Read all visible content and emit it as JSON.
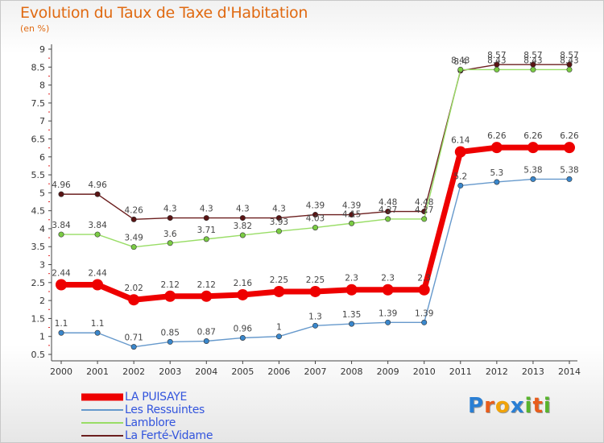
{
  "chart_data": {
    "type": "line",
    "title": "Evolution du Taux de Taxe d'Habitation",
    "subtitle": "(en %)",
    "xlabel": "",
    "ylabel": "",
    "x": [
      "2000",
      "2001",
      "2002",
      "2003",
      "2004",
      "2005",
      "2006",
      "2007",
      "2008",
      "2009",
      "2010",
      "2011",
      "2012",
      "2013",
      "2014"
    ],
    "ylim": [
      0.5,
      9
    ],
    "yticks": [
      "0.5",
      "1",
      "1.5",
      "2",
      "2.5",
      "3",
      "3.5",
      "4",
      "4.5",
      "5",
      "5.5",
      "6",
      "6.5",
      "7",
      "7.5",
      "8",
      "8.5",
      "9"
    ],
    "grid": false,
    "legend_position": "bottom-left",
    "series": [
      {
        "name": "La Ferté-Vidame",
        "color": "#6b1e1e",
        "point_color": "#5a1414",
        "values": [
          4.96,
          4.96,
          4.26,
          4.3,
          4.3,
          4.3,
          4.3,
          4.39,
          4.39,
          4.48,
          4.48,
          8.4,
          8.57,
          8.57,
          8.57
        ],
        "labels": [
          "4.96",
          "4.96",
          "4.26",
          "4.3",
          "4.3",
          "4.3",
          "4.3",
          "4.39",
          "4.39",
          "4.48",
          "4.48",
          "8.4",
          "8.57",
          "8.57",
          "8.57"
        ]
      },
      {
        "name": "Lamblore",
        "color": "#99dd66",
        "point_color": "#7bcc44",
        "values": [
          3.84,
          3.84,
          3.49,
          3.6,
          3.71,
          3.82,
          3.93,
          4.03,
          4.15,
          4.27,
          4.27,
          8.43,
          8.43,
          8.43,
          8.43
        ],
        "labels": [
          "3.84",
          "3.84",
          "3.49",
          "3.6",
          "3.71",
          "3.82",
          "3.93",
          "4.03",
          "4.15",
          "4.27",
          "4.27",
          "8.43",
          "8.43",
          "8.43",
          "8.43"
        ]
      },
      {
        "name": "LA PUISAYE",
        "color": "#ee0000",
        "point_color": "#ee0000",
        "values": [
          2.44,
          2.44,
          2.02,
          2.12,
          2.12,
          2.16,
          2.25,
          2.25,
          2.3,
          2.3,
          2.3,
          6.14,
          6.26,
          6.26,
          6.26
        ],
        "labels": [
          "2.44",
          "2.44",
          "2.02",
          "2.12",
          "2.12",
          "2.16",
          "2.25",
          "2.25",
          "2.3",
          "2.3",
          "2.3",
          "6.14",
          "6.26",
          "6.26",
          "6.26"
        ]
      },
      {
        "name": "Les Ressuintes",
        "color": "#6699cc",
        "point_color": "#3a87cc",
        "values": [
          1.1,
          1.1,
          0.71,
          0.85,
          0.87,
          0.96,
          1,
          1.3,
          1.35,
          1.39,
          1.39,
          5.2,
          5.3,
          5.38,
          5.38
        ],
        "labels": [
          "1.1",
          "1.1",
          "0.71",
          "0.85",
          "0.87",
          "0.96",
          "1",
          "1.3",
          "1.35",
          "1.39",
          "1.39",
          "5.2",
          "5.3",
          "5.38",
          "5.38"
        ]
      }
    ]
  },
  "legend": {
    "items": [
      {
        "label": "LA PUISAYE",
        "color": "#ee0000"
      },
      {
        "label": "Les Ressuintes",
        "color": "#6699cc"
      },
      {
        "label": "Lamblore",
        "color": "#99dd66"
      },
      {
        "label": "La Ferté-Vidame",
        "color": "#6b1e1e"
      }
    ]
  },
  "brand": {
    "letters": [
      "P",
      "r",
      "o",
      "x",
      "i",
      "t",
      "i"
    ],
    "colors": [
      "#2a7fd4",
      "#e85d1c",
      "#f0a30a",
      "#2a7fd4",
      "#58b42d",
      "#e85d1c",
      "#58b42d"
    ]
  }
}
